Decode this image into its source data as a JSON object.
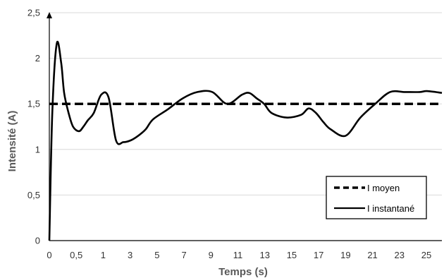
{
  "chart_data": {
    "type": "line",
    "xlabel": "Temps (s)",
    "ylabel": "Intensité (A)",
    "x_tick_labels": [
      "0",
      "0,5",
      "1",
      "3",
      "5",
      "7",
      "9",
      "11",
      "13",
      "15",
      "17",
      "19",
      "21",
      "23",
      "25"
    ],
    "y_tick_labels": [
      "0",
      "0,5",
      "1",
      "1,5",
      "2",
      "2,5"
    ],
    "ylim": [
      0,
      2.5
    ],
    "grid": "horizontal",
    "legend_position": "bottom-right",
    "series": [
      {
        "name": "I moyen",
        "style": "dashed",
        "color": "#000000",
        "x": [
          0,
          26.5
        ],
        "y": [
          1.5,
          1.5
        ]
      },
      {
        "name": "I instantané",
        "style": "solid",
        "color": "#000000",
        "x": [
          0,
          0.2,
          0.5,
          0.8,
          1.0,
          1.3,
          1.6,
          2.0,
          2.3,
          2.6,
          3.0,
          3.5,
          4.0,
          4.5,
          5.0,
          5.5,
          6.0,
          6.5,
          7.0,
          8.0,
          9.0,
          10.0,
          11.0,
          12.0,
          13.0,
          13.5,
          14.0,
          14.5,
          15.0,
          16.0,
          17.0,
          17.5,
          18.0,
          18.5,
          19.0,
          20.0,
          21.0,
          22.0,
          23.0,
          24.0,
          25.0,
          25.5,
          26.5
        ],
        "y": [
          0,
          1.4,
          2.16,
          1.95,
          1.62,
          1.4,
          1.25,
          1.2,
          1.25,
          1.32,
          1.4,
          1.6,
          1.57,
          1.1,
          1.08,
          1.1,
          1.15,
          1.22,
          1.33,
          1.44,
          1.56,
          1.63,
          1.63,
          1.5,
          1.6,
          1.62,
          1.56,
          1.5,
          1.4,
          1.35,
          1.38,
          1.45,
          1.4,
          1.3,
          1.22,
          1.15,
          1.35,
          1.5,
          1.63,
          1.63,
          1.63,
          1.64,
          1.62
        ]
      }
    ]
  }
}
